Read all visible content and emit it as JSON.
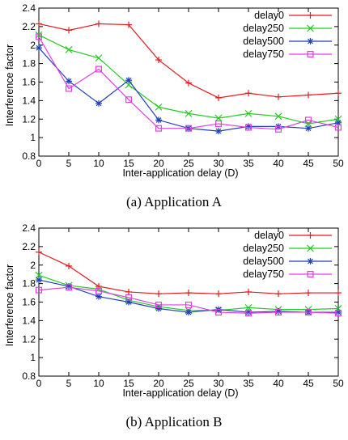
{
  "chart_data": [
    {
      "type": "line",
      "xlabel": "Inter-application delay (D)",
      "ylabel": "Interference factor",
      "xlim": [
        0,
        50
      ],
      "ylim": [
        0.8,
        2.4
      ],
      "xticks": [
        "0",
        "5",
        "10",
        "15",
        "20",
        "25",
        "30",
        "35",
        "40",
        "45",
        "50"
      ],
      "yticks": [
        "0.8",
        "1",
        "1.2",
        "1.4",
        "1.6",
        "1.8",
        "2",
        "2.2",
        "2.4"
      ],
      "grid": false,
      "legend": "top-right",
      "x": [
        0,
        5,
        10,
        15,
        20,
        25,
        30,
        35,
        40,
        45,
        50
      ],
      "series": [
        {
          "name": "delay0",
          "color": "#e41a1c",
          "marker": "plus",
          "values": [
            2.23,
            2.16,
            2.23,
            2.22,
            1.84,
            1.59,
            1.43,
            1.48,
            1.44,
            1.46,
            1.48
          ]
        },
        {
          "name": "delay250",
          "color": "#22cc22",
          "marker": "x",
          "values": [
            2.11,
            1.95,
            1.86,
            1.57,
            1.33,
            1.26,
            1.21,
            1.26,
            1.23,
            1.15,
            1.2
          ]
        },
        {
          "name": "delay500",
          "color": "#1f3fbf",
          "marker": "star",
          "values": [
            1.97,
            1.61,
            1.37,
            1.62,
            1.19,
            1.1,
            1.07,
            1.12,
            1.12,
            1.1,
            1.16
          ]
        },
        {
          "name": "delay750",
          "color": "#e040e0",
          "marker": "square",
          "values": [
            2.09,
            1.53,
            1.74,
            1.41,
            1.1,
            1.1,
            1.15,
            1.11,
            1.09,
            1.19,
            1.11
          ]
        }
      ],
      "caption": "(a)  Application A"
    },
    {
      "type": "line",
      "xlabel": "Inter-application delay (D)",
      "ylabel": "Interference factor",
      "xlim": [
        0,
        50
      ],
      "ylim": [
        0.8,
        2.4
      ],
      "xticks": [
        "0",
        "5",
        "10",
        "15",
        "20",
        "25",
        "30",
        "35",
        "40",
        "45",
        "50"
      ],
      "yticks": [
        "0.8",
        "1",
        "1.2",
        "1.4",
        "1.6",
        "1.8",
        "2",
        "2.2",
        "2.4"
      ],
      "grid": false,
      "legend": "top-right",
      "x": [
        0,
        5,
        10,
        15,
        20,
        25,
        30,
        35,
        40,
        45,
        50
      ],
      "series": [
        {
          "name": "delay0",
          "color": "#e41a1c",
          "marker": "plus",
          "values": [
            2.14,
            1.99,
            1.77,
            1.71,
            1.69,
            1.7,
            1.69,
            1.71,
            1.69,
            1.7,
            1.7
          ]
        },
        {
          "name": "delay250",
          "color": "#22cc22",
          "marker": "x",
          "values": [
            1.89,
            1.78,
            1.74,
            1.62,
            1.55,
            1.51,
            1.51,
            1.54,
            1.52,
            1.52,
            1.53
          ]
        },
        {
          "name": "delay500",
          "color": "#1f3fbf",
          "marker": "star",
          "values": [
            1.84,
            1.77,
            1.66,
            1.6,
            1.53,
            1.49,
            1.52,
            1.49,
            1.5,
            1.49,
            1.49
          ]
        },
        {
          "name": "delay750",
          "color": "#e040e0",
          "marker": "square",
          "values": [
            1.73,
            1.76,
            1.72,
            1.65,
            1.57,
            1.57,
            1.49,
            1.48,
            1.49,
            1.49,
            1.48
          ]
        }
      ],
      "caption": "(b)  Application B"
    }
  ]
}
